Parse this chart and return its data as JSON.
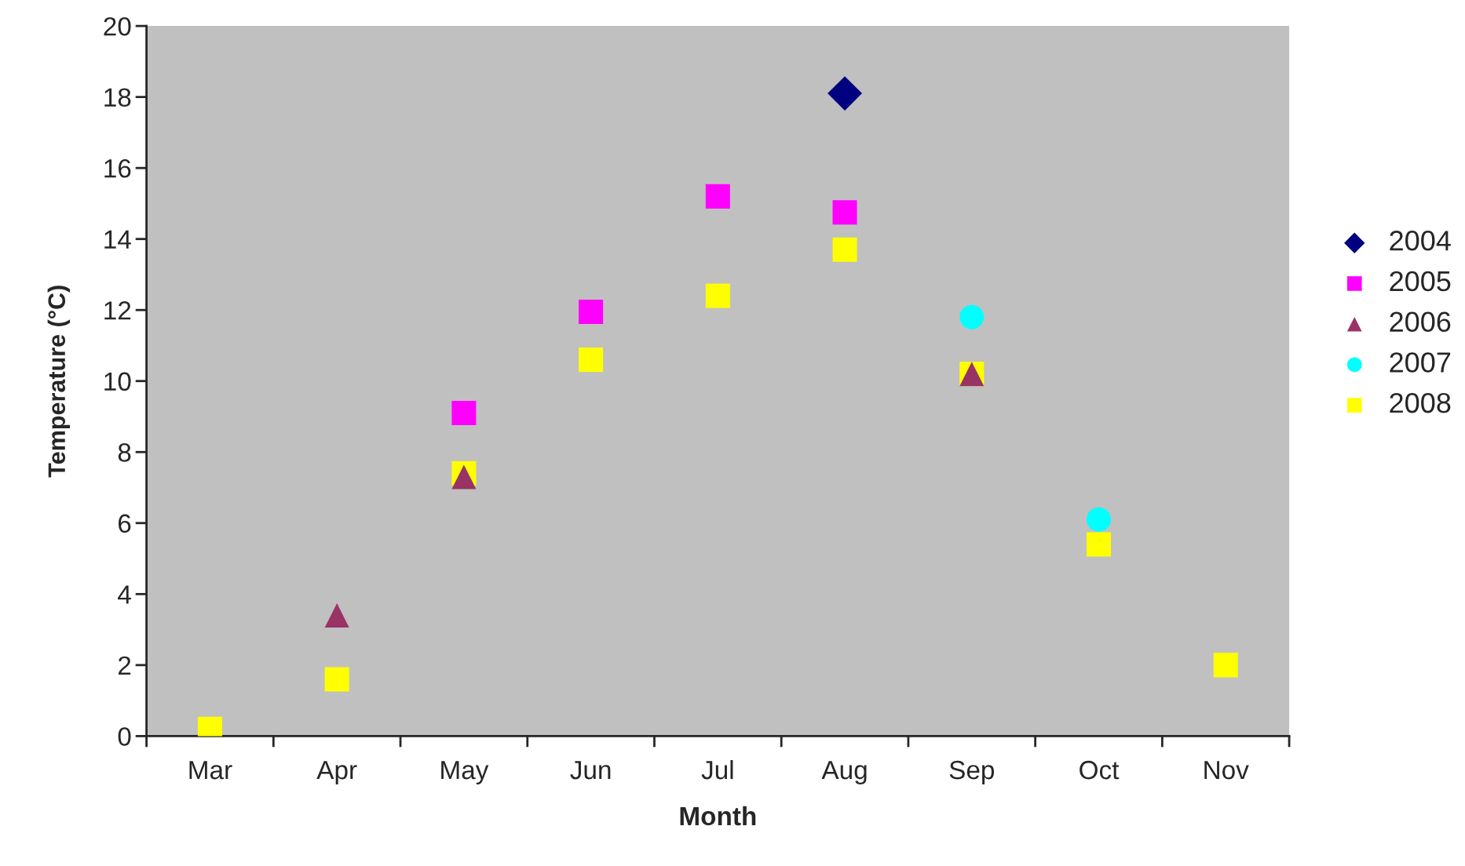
{
  "chart_data": {
    "type": "scatter",
    "xlabel": "Month",
    "ylabel": "Temperature (°C)",
    "categories": [
      "Mar",
      "Apr",
      "May",
      "Jun",
      "Jul",
      "Aug",
      "Sep",
      "Oct",
      "Nov"
    ],
    "ylim": [
      0,
      20
    ],
    "yticks": [
      0,
      2,
      4,
      6,
      8,
      10,
      12,
      14,
      16,
      18,
      20
    ],
    "grid": false,
    "legend": "right",
    "series": [
      {
        "name": "2004",
        "color": "#000080",
        "marker": "diamond",
        "values": [
          null,
          null,
          null,
          null,
          null,
          18.1,
          null,
          null,
          null
        ]
      },
      {
        "name": "2005",
        "color": "#ff00ff",
        "marker": "square",
        "values": [
          null,
          null,
          9.1,
          11.95,
          15.2,
          14.75,
          null,
          null,
          null
        ]
      },
      {
        "name": "2006",
        "color": "#993366",
        "marker": "triangle",
        "values": [
          null,
          3.4,
          7.3,
          null,
          null,
          null,
          10.2,
          null,
          null
        ]
      },
      {
        "name": "2007",
        "color": "#00ffff",
        "marker": "circle",
        "values": [
          null,
          null,
          null,
          null,
          null,
          null,
          11.8,
          6.1,
          null
        ]
      },
      {
        "name": "2008",
        "color": "#ffff00",
        "marker": "square",
        "values": [
          0.2,
          1.6,
          7.4,
          10.6,
          12.4,
          13.7,
          10.2,
          5.4,
          2.0
        ]
      }
    ]
  }
}
